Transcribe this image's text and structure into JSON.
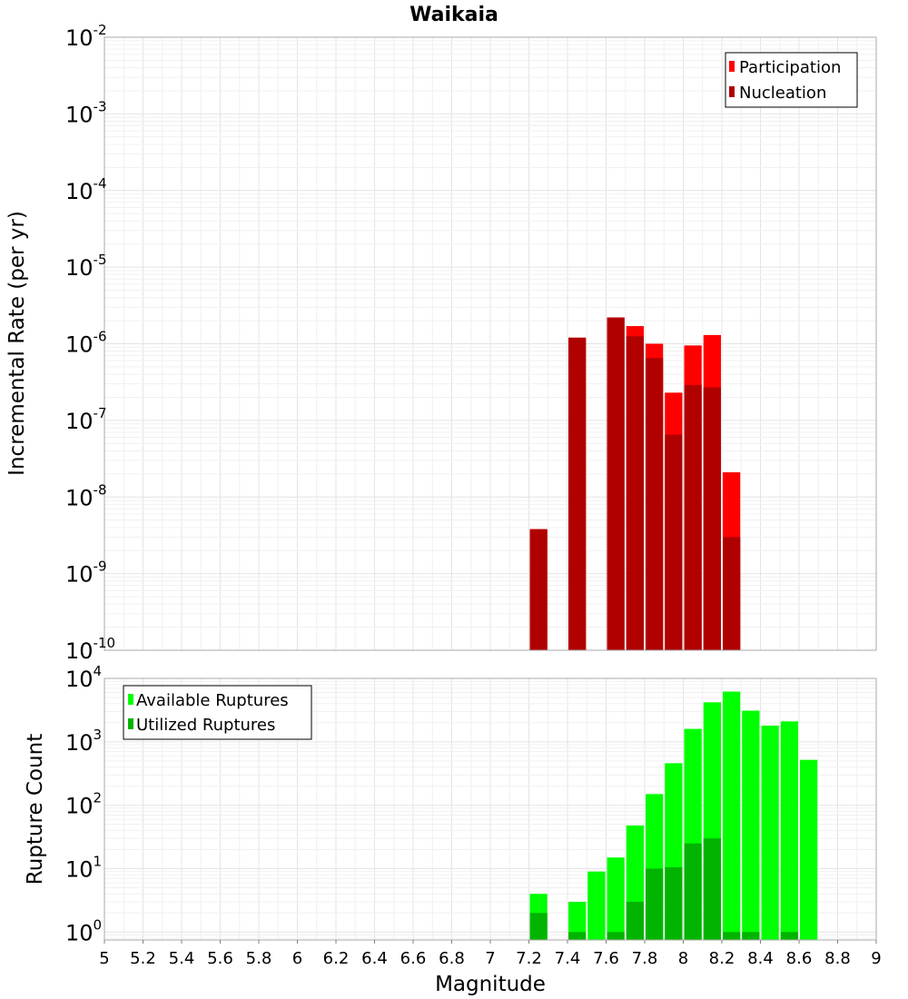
{
  "chart_data": [
    {
      "type": "bar",
      "title": "Waikaia",
      "ylabel": "Incremental Rate (per yr)",
      "xlabel": "",
      "xlim": [
        5,
        9
      ],
      "ylim": [
        1e-10,
        0.01
      ],
      "yscale": "log",
      "bin_width": 0.1,
      "y_tick_labels": [
        {
          "base": "10",
          "exp": "-2",
          "value": 0.01
        },
        {
          "base": "10",
          "exp": "-3",
          "value": 0.001
        },
        {
          "base": "10",
          "exp": "-4",
          "value": 0.0001
        },
        {
          "base": "10",
          "exp": "-5",
          "value": 1e-05
        },
        {
          "base": "10",
          "exp": "-6",
          "value": 1e-06
        },
        {
          "base": "10",
          "exp": "-7",
          "value": 1e-07
        },
        {
          "base": "10",
          "exp": "-8",
          "value": 1e-08
        },
        {
          "base": "10",
          "exp": "-9",
          "value": 1e-09
        },
        {
          "base": "10",
          "exp": "-10",
          "value": 1e-10
        }
      ],
      "series": [
        {
          "name": "Participation",
          "color": "#ff0000",
          "x": [
            7.25,
            7.45,
            7.65,
            7.75,
            7.85,
            7.95,
            8.05,
            8.15,
            8.25
          ],
          "values": [
            3.8e-09,
            1.2e-06,
            2.2e-06,
            1.7e-06,
            1e-06,
            2.3e-07,
            9.5e-07,
            1.3e-06,
            2.1e-08
          ]
        },
        {
          "name": "Nucleation",
          "color": "#b00000",
          "x": [
            7.25,
            7.45,
            7.65,
            7.75,
            7.85,
            7.95,
            8.05,
            8.15,
            8.25
          ],
          "values": [
            3.8e-09,
            1.2e-06,
            2.2e-06,
            1.25e-06,
            6.5e-07,
            6.5e-08,
            2.9e-07,
            2.7e-07,
            3e-09
          ]
        }
      ],
      "legend": "top-right"
    },
    {
      "type": "bar",
      "title": "",
      "ylabel": "Rupture Count",
      "xlabel": "Magnitude",
      "xlim": [
        5,
        9
      ],
      "ylim": [
        0.75,
        10000
      ],
      "yscale": "log",
      "bin_width": 0.1,
      "y_tick_labels": [
        {
          "base": "10",
          "exp": "4",
          "value": 10000
        },
        {
          "base": "10",
          "exp": "3",
          "value": 1000
        },
        {
          "base": "10",
          "exp": "2",
          "value": 100
        },
        {
          "base": "10",
          "exp": "1",
          "value": 10
        },
        {
          "base": "10",
          "exp": "0",
          "value": 1
        }
      ],
      "x_tick_labels": [
        "5",
        "5.2",
        "5.4",
        "5.6",
        "5.8",
        "6",
        "6.2",
        "6.4",
        "6.6",
        "6.8",
        "7",
        "7.2",
        "7.4",
        "7.6",
        "7.8",
        "8",
        "8.2",
        "8.4",
        "8.6",
        "8.8",
        "9"
      ],
      "x_tick_values": [
        5,
        5.2,
        5.4,
        5.6,
        5.8,
        6,
        6.2,
        6.4,
        6.6,
        6.8,
        7,
        7.2,
        7.4,
        7.6,
        7.8,
        8,
        8.2,
        8.4,
        8.6,
        8.8,
        9
      ],
      "series": [
        {
          "name": "Available Ruptures",
          "color": "#00ff00",
          "x": [
            7.25,
            7.45,
            7.55,
            7.65,
            7.75,
            7.85,
            7.95,
            8.05,
            8.15,
            8.25,
            8.35,
            8.45,
            8.55,
            8.65
          ],
          "values": [
            4,
            3,
            9,
            15,
            48,
            150,
            460,
            1600,
            4200,
            6200,
            3100,
            1800,
            2100,
            520
          ]
        },
        {
          "name": "Utilized Ruptures",
          "color": "#00b400",
          "x": [
            7.25,
            7.45,
            7.65,
            7.75,
            7.85,
            7.95,
            8.05,
            8.15,
            8.25,
            8.35,
            8.55
          ],
          "values": [
            2,
            1,
            1,
            3,
            10,
            10.5,
            25,
            30,
            1,
            1,
            1
          ]
        }
      ],
      "legend": "top-left"
    }
  ]
}
